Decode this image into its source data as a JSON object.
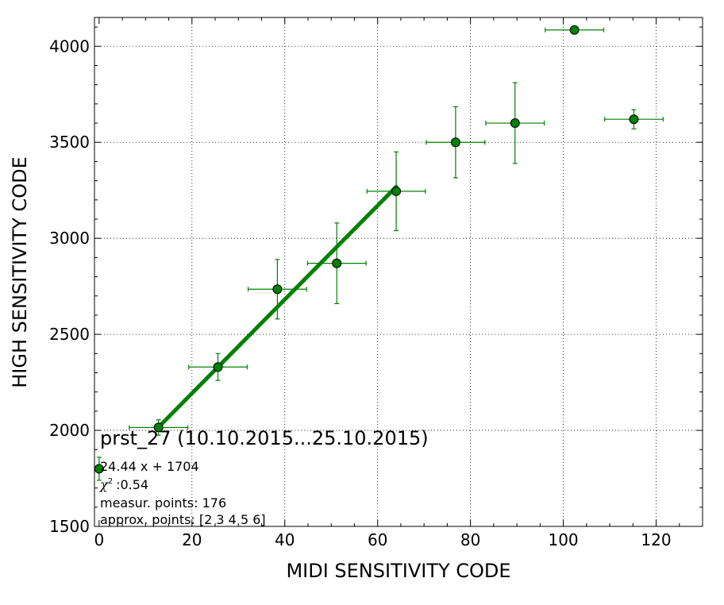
{
  "chart_data": {
    "type": "scatter",
    "xlabel": "MIDI SENSITIVITY CODE",
    "ylabel": "HIGH SENSITIVITY CODE",
    "xlim": [
      -1,
      130
    ],
    "ylim": [
      1500,
      4150
    ],
    "xticks": [
      0,
      20,
      40,
      60,
      80,
      100,
      120
    ],
    "yticks": [
      1500,
      2000,
      2500,
      3000,
      3500,
      4000
    ],
    "grid": true,
    "color": "#008000",
    "points": [
      {
        "x": 0.0,
        "y": 1800,
        "xerr": 0,
        "yerr": 60
      },
      {
        "x": 12.8,
        "y": 2015,
        "xerr": 6.3,
        "yerr": 40
      },
      {
        "x": 25.6,
        "y": 2330,
        "xerr": 6.3,
        "yerr": 70
      },
      {
        "x": 38.4,
        "y": 2735,
        "xerr": 6.3,
        "yerr": 155
      },
      {
        "x": 51.2,
        "y": 2870,
        "xerr": 6.3,
        "yerr": 210
      },
      {
        "x": 64.0,
        "y": 3245,
        "xerr": 6.3,
        "yerr": 205
      },
      {
        "x": 76.8,
        "y": 3500,
        "xerr": 6.3,
        "yerr": 185
      },
      {
        "x": 89.6,
        "y": 3600,
        "xerr": 6.3,
        "yerr": 210
      },
      {
        "x": 102.4,
        "y": 4085,
        "xerr": 6.3,
        "yerr": 0
      },
      {
        "x": 115.2,
        "y": 3620,
        "xerr": 6.3,
        "yerr": 50
      }
    ],
    "fit": {
      "slope": 24.44,
      "intercept": 1704,
      "x_range": [
        12.8,
        64.0
      ]
    },
    "annotation": {
      "title": "prst_27 (10.10.2015...25.10.2015)",
      "equation": "24.44 x + 1704",
      "chi2_symbol": "χ",
      "chi2_value": ":0.54",
      "measur_points": "measur. points: 176",
      "approx_points": "approx. points: [2 3 4 5 6]"
    }
  }
}
